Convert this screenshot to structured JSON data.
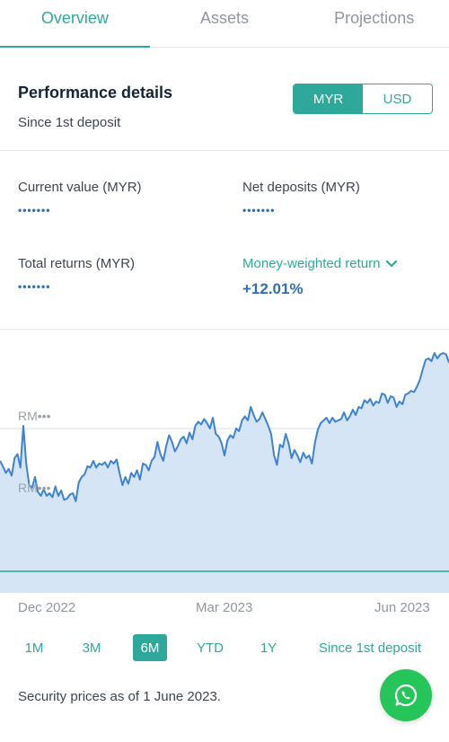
{
  "tabs": [
    "Overview",
    "Assets",
    "Projections"
  ],
  "performance": {
    "title": "Performance details",
    "subtitle": "Since 1st deposit",
    "currencies": [
      "MYR",
      "USD"
    ],
    "selected_currency": "MYR"
  },
  "metrics": {
    "current_value": {
      "label": "Current value (MYR)",
      "value": "•••••••"
    },
    "net_deposits": {
      "label": "Net deposits (MYR)",
      "value": "•••••••"
    },
    "total_returns": {
      "label": "Total returns (MYR)",
      "value": "•••••••"
    },
    "return_type": {
      "label": "Money-weighted return",
      "value": "+12.01%"
    }
  },
  "chart_data": {
    "type": "area",
    "y_tick_labels": [
      "RM•••",
      "RM•••"
    ],
    "x_tick_labels": [
      "Dec 2022",
      "Mar 2023",
      "Jun 2023"
    ],
    "series_values": [
      0.42,
      0.38,
      0.33,
      0.36,
      0.31,
      0.44,
      0.47,
      0.37,
      0.68,
      0.4,
      0.24,
      0.22,
      0.3,
      0.19,
      0.16,
      0.21,
      0.16,
      0.18,
      0.15,
      0.23,
      0.16,
      0.2,
      0.13,
      0.14,
      0.17,
      0.18,
      0.12,
      0.26,
      0.3,
      0.32,
      0.38,
      0.37,
      0.42,
      0.37,
      0.4,
      0.39,
      0.41,
      0.37,
      0.42,
      0.4,
      0.43,
      0.33,
      0.24,
      0.3,
      0.25,
      0.33,
      0.3,
      0.35,
      0.28,
      0.4,
      0.39,
      0.35,
      0.42,
      0.45,
      0.56,
      0.47,
      0.42,
      0.53,
      0.61,
      0.56,
      0.49,
      0.53,
      0.58,
      0.6,
      0.55,
      0.63,
      0.58,
      0.68,
      0.71,
      0.69,
      0.73,
      0.7,
      0.66,
      0.74,
      0.62,
      0.6,
      0.55,
      0.46,
      0.57,
      0.61,
      0.59,
      0.66,
      0.64,
      0.72,
      0.75,
      0.72,
      0.82,
      0.76,
      0.71,
      0.73,
      0.78,
      0.73,
      0.68,
      0.62,
      0.46,
      0.39,
      0.54,
      0.52,
      0.62,
      0.55,
      0.44,
      0.5,
      0.46,
      0.41,
      0.48,
      0.44,
      0.46,
      0.4,
      0.55,
      0.65,
      0.7,
      0.72,
      0.74,
      0.7,
      0.74,
      0.71,
      0.72,
      0.73,
      0.78,
      0.72,
      0.75,
      0.8,
      0.76,
      0.82,
      0.81,
      0.87,
      0.85,
      0.88,
      0.83,
      0.86,
      0.85,
      0.92,
      0.91,
      0.85,
      0.9,
      0.89,
      0.82,
      0.86,
      0.84,
      0.91,
      0.92,
      0.94,
      0.93,
      0.97,
      1.02,
      1.1,
      1.17,
      1.18,
      1.16,
      1.22,
      1.18,
      1.21,
      1.22,
      1.21,
      1.15
    ],
    "grid": true
  },
  "ranges": [
    "1M",
    "3M",
    "6M",
    "YTD",
    "1Y",
    "Since 1st deposit"
  ],
  "selected_range": "6M",
  "footnote": "Security prices as of 1 June 2023.",
  "colors": {
    "accent": "#2fa89c",
    "line": "#3e82d3",
    "area": "#d5e5f5",
    "baseline": "#4fb6ae",
    "whatsapp": "#25c55a"
  },
  "icons": {
    "dropdown": "chevron-down-icon",
    "chat": "whatsapp-icon"
  }
}
